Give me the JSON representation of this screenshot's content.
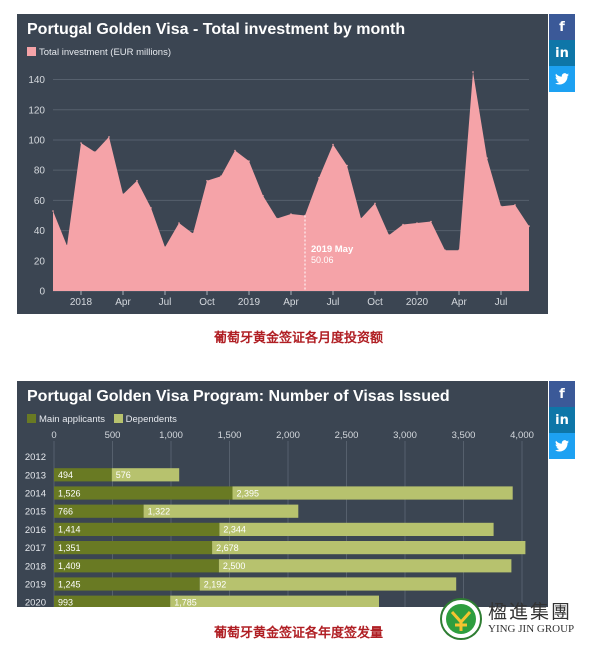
{
  "chart_data": [
    {
      "type": "area",
      "title": "Portugal Golden Visa - Total investment by month",
      "legend": [
        "Total investment (EUR millions)"
      ],
      "color": "#f5a3a8",
      "x_start": "2017-11",
      "x_tick_labels": [
        "2018",
        "Apr",
        "Jul",
        "Oct",
        "2019",
        "Apr",
        "Jul",
        "Oct",
        "2020",
        "Apr",
        "Jul"
      ],
      "y_ticks": [
        0,
        20,
        40,
        60,
        80,
        100,
        120,
        140
      ],
      "ylim": [
        0,
        145
      ],
      "values": [
        53,
        30,
        98,
        92,
        102,
        64,
        73,
        55,
        29,
        45,
        38,
        73,
        76,
        93,
        86,
        63,
        48,
        51,
        50,
        75,
        97,
        83,
        48,
        58,
        37,
        44,
        45,
        46,
        27,
        27,
        145,
        88,
        56,
        57,
        43
      ],
      "tooltip": {
        "label": "2019 May",
        "value": "50.06"
      }
    },
    {
      "type": "bar",
      "orientation": "horizontal",
      "stacked": true,
      "title": "Portugal Golden Visa Program: Number of Visas Issued",
      "categories": [
        "2012",
        "2013",
        "2014",
        "2015",
        "2016",
        "2017",
        "2018",
        "2019",
        "2020"
      ],
      "series": [
        {
          "name": "Main applicants",
          "color": "#697a23",
          "values": [
            0,
            494,
            1526,
            766,
            1414,
            1351,
            1409,
            1245,
            993
          ],
          "labels": [
            "",
            "494",
            "1,526",
            "766",
            "1,414",
            "1,351",
            "1,409",
            "1,245",
            "993"
          ]
        },
        {
          "name": "Dependents",
          "color": "#b7c26e",
          "values": [
            0,
            576,
            2395,
            1322,
            2344,
            2678,
            2500,
            2192,
            1785
          ],
          "labels": [
            "",
            "576",
            "2,395",
            "1,322",
            "2,344",
            "2,678",
            "2,500",
            "2,192",
            "1,785"
          ]
        }
      ],
      "x_ticks": [
        0,
        500,
        1000,
        1500,
        2000,
        2500,
        3000,
        3500,
        4000
      ],
      "x_tick_labels": [
        "0",
        "500",
        "1,000",
        "1,500",
        "2,000",
        "2,500",
        "3,000",
        "3,500",
        "4,000"
      ],
      "xlim": [
        0,
        4100
      ]
    }
  ],
  "social": {
    "facebook": "f",
    "linkedin": "in",
    "twitter": "twitter-bird-icon"
  },
  "captions": {
    "chart1": "葡萄牙黄金签证各月度投资额",
    "chart2": "葡萄牙黄金签证各年度签发量"
  },
  "logo": {
    "chinese": "楹進集團",
    "english": "YING JIN GROUP"
  }
}
